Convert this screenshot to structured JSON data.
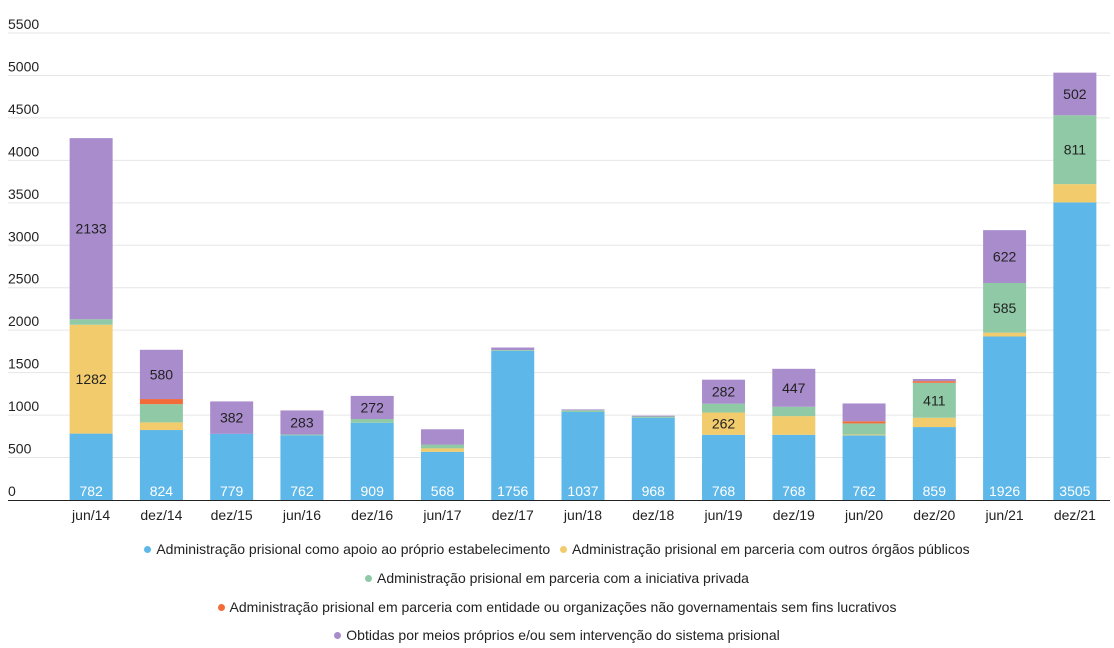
{
  "chart_data": {
    "type": "bar",
    "stacked": true,
    "categories": [
      "jun/14",
      "dez/14",
      "dez/15",
      "jun/16",
      "dez/16",
      "jun/17",
      "dez/17",
      "jun/18",
      "dez/18",
      "jun/19",
      "dez/19",
      "jun/20",
      "dez/20",
      "jun/21",
      "dez/21"
    ],
    "ylim": [
      0,
      5500
    ],
    "yticks": [
      0,
      500,
      1000,
      1500,
      2000,
      2500,
      3000,
      3500,
      4000,
      4500,
      5000,
      5500
    ],
    "grid": true,
    "legend_position": "bottom",
    "series": [
      {
        "name": "Administração prisional como apoio ao próprio estabelecimento",
        "color": "#5db7e8",
        "values": [
          782,
          824,
          779,
          762,
          909,
          568,
          1756,
          1037,
          968,
          768,
          768,
          762,
          859,
          1926,
          3505
        ],
        "labels": [
          "782",
          "824",
          "779",
          "762",
          "909",
          "568",
          "1756",
          "1037",
          "968",
          "768",
          "768",
          "762",
          "859",
          "1926",
          "3505"
        ]
      },
      {
        "name": "Administração prisional em parceria com outros órgãos públicos",
        "color": "#f2cb6c",
        "values": [
          1282,
          90,
          0,
          0,
          0,
          40,
          0,
          0,
          0,
          262,
          220,
          10,
          110,
          45,
          215
        ],
        "labels": [
          "1282",
          "",
          "",
          "",
          "",
          "",
          "",
          "",
          "",
          "262",
          "",
          "",
          "",
          "",
          ""
        ]
      },
      {
        "name": "Administração prisional em parceria com a iniciativa privada",
        "color": "#8fc9a5",
        "values": [
          65,
          215,
          0,
          10,
          45,
          45,
          10,
          20,
          15,
          105,
          110,
          130,
          411,
          585,
          811
        ],
        "labels": [
          "",
          "",
          "",
          "",
          "",
          "",
          "",
          "",
          "",
          "",
          "",
          "",
          "411",
          "585",
          "811"
        ]
      },
      {
        "name": "Administração prisional em parceria com entidade ou organizações não governamentais sem fins lucrativos",
        "color": "#f26b38",
        "values": [
          0,
          60,
          0,
          0,
          0,
          0,
          0,
          0,
          0,
          0,
          0,
          25,
          20,
          0,
          0
        ],
        "labels": [
          "",
          "",
          "",
          "",
          "",
          "",
          "",
          "",
          "",
          "",
          "",
          "",
          "",
          "",
          ""
        ]
      },
      {
        "name": "Obtidas por meios próprios e/ou sem intervenção do sistema prisional",
        "color": "#a98ccc",
        "values": [
          2133,
          580,
          382,
          283,
          272,
          180,
          30,
          10,
          10,
          282,
          447,
          210,
          25,
          622,
          502
        ],
        "labels": [
          "2133",
          "580",
          "382",
          "283",
          "272",
          "",
          "",
          "",
          "",
          "282",
          "447",
          "",
          "",
          "622",
          "502"
        ]
      }
    ]
  }
}
